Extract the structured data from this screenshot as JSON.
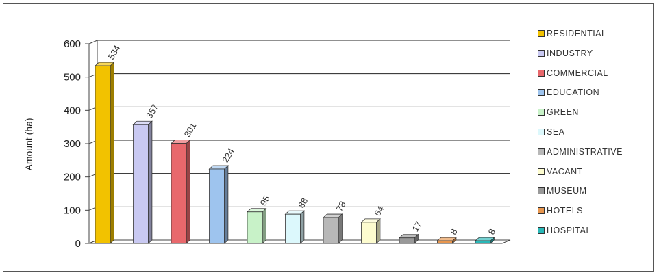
{
  "chart_data": {
    "type": "bar",
    "ylabel": "Amount (ha)",
    "ylim": [
      0,
      600
    ],
    "yticks": [
      "0",
      "100",
      "200",
      "300",
      "400",
      "500",
      "600"
    ],
    "grid": true,
    "legend_position": "right",
    "categories": [
      "RESIDENTIAL",
      "INDUSTRY",
      "COMMERCIAL",
      "EDUCATION",
      "GREEN",
      "SEA",
      "ADMINISTRATIVE",
      "VACANT",
      "MUSEUM",
      "HOTELS",
      "HOSPITAL"
    ],
    "values": [
      534,
      357,
      301,
      224,
      95,
      88,
      78,
      64,
      17,
      8,
      8
    ],
    "colors": [
      "#f2c200",
      "#c9c9f2",
      "#e8686c",
      "#9ec4ee",
      "#c8f2c8",
      "#dcf8fc",
      "#b8b8b8",
      "#fdfccf",
      "#999999",
      "#e8964e",
      "#29b8b8"
    ]
  }
}
